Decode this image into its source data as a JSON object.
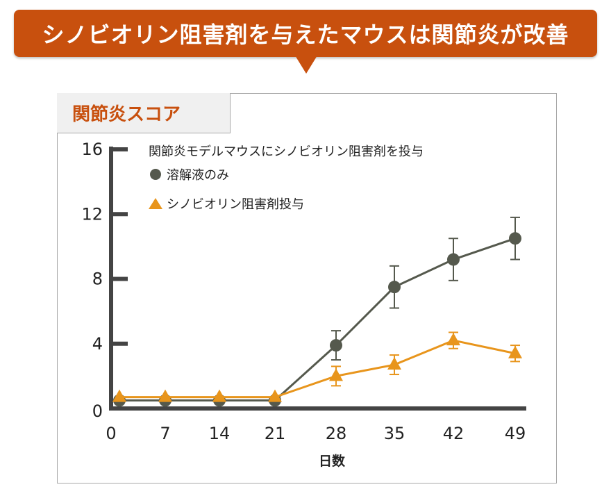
{
  "banner": {
    "title": "シノビオリン阻害剤を与えたマウスは関節炎が改善"
  },
  "panel": {
    "tab_label": "関節炎スコア"
  },
  "colors": {
    "accent": "#c8500e",
    "control": "#55594d",
    "treated": "#e8951c",
    "axis": "#444444"
  },
  "chart_data": {
    "type": "line",
    "title": "関節炎スコア",
    "legend_title": "関節炎モデルマウスにシノビオリン阻害剤を投与",
    "xlabel": "日数",
    "ylabel": "",
    "x": [
      0,
      7,
      14,
      21,
      28,
      35,
      42,
      49
    ],
    "x_ticks": [
      "0",
      "7",
      "14",
      "21",
      "28",
      "35",
      "42",
      "49"
    ],
    "y_ticks": [
      "0",
      "4",
      "8",
      "12",
      "16"
    ],
    "ylim": [
      0,
      16
    ],
    "grid": false,
    "legend_position": "top-left",
    "series": [
      {
        "name": "溶解液のみ",
        "marker": "circle",
        "values": [
          0.5,
          0.5,
          0.5,
          0.5,
          3.9,
          7.5,
          9.2,
          10.5
        ],
        "errors": [
          0,
          0,
          0,
          0,
          0.9,
          1.3,
          1.3,
          1.3
        ]
      },
      {
        "name": "シノビオリン阻害剤投与",
        "marker": "triangle",
        "values": [
          0.7,
          0.7,
          0.7,
          0.7,
          2.0,
          2.7,
          4.2,
          3.4
        ],
        "errors": [
          0,
          0,
          0,
          0,
          0.6,
          0.6,
          0.5,
          0.5
        ]
      }
    ]
  }
}
